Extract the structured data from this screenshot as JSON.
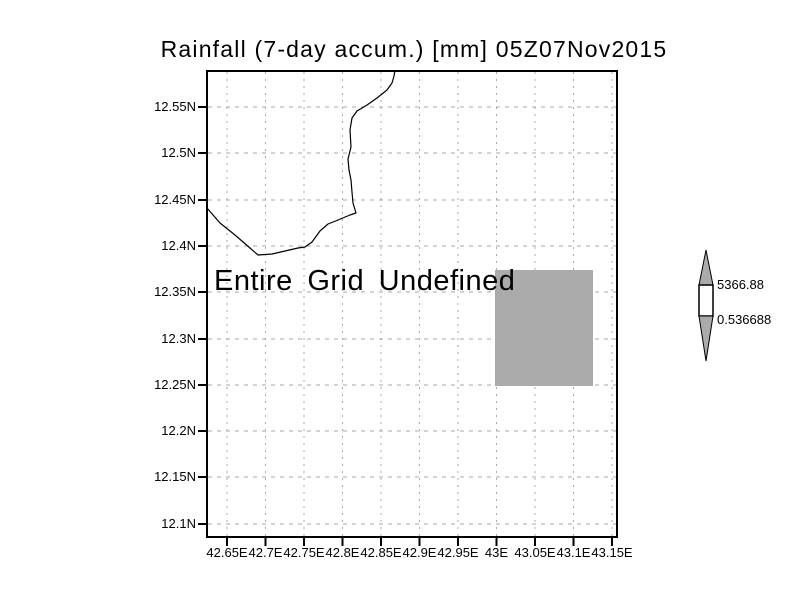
{
  "title": "Rainfall (7-day accum.) [mm] 05Z07Nov2015",
  "message": "Entire Grid Undefined",
  "axes": {
    "x": {
      "labels": [
        "42.65E",
        "42.7E",
        "42.75E",
        "42.8E",
        "42.85E",
        "42.9E",
        "42.95E",
        "43E",
        "43.05E",
        "43.1E",
        "43.15E"
      ]
    },
    "y": {
      "labels": [
        "12.55N",
        "12.5N",
        "12.45N",
        "12.4N",
        "12.35N",
        "12.3N",
        "12.25N",
        "12.2N",
        "12.15N",
        "12.1N"
      ]
    }
  },
  "colorbar": {
    "max": "5366.88",
    "min": "0.536688"
  },
  "colors": {
    "background": "#ffffff",
    "line": "#000000",
    "grid": "#a8a8a8",
    "shade": "#ababab"
  },
  "chart_data": {
    "type": "heatmap",
    "title": "Rainfall (7-day accum.) [mm] 05Z07Nov2015",
    "variable": "Rainfall (7-day accum.)",
    "units": "mm",
    "valid_time": "05Z07Nov2015",
    "xlabel": "",
    "ylabel": "",
    "x_tick_labels": [
      "42.65E",
      "42.7E",
      "42.75E",
      "42.8E",
      "42.85E",
      "42.9E",
      "42.95E",
      "43E",
      "43.05E",
      "43.1E",
      "43.15E"
    ],
    "y_tick_labels": [
      "12.55N",
      "12.5N",
      "12.45N",
      "12.4N",
      "12.35N",
      "12.3N",
      "12.25N",
      "12.2N",
      "12.15N",
      "12.1N"
    ],
    "xlim_deg_east": [
      42.62,
      43.16
    ],
    "ylim_deg_north": [
      12.085,
      12.59
    ],
    "grid": true,
    "status_annotation": "Entire Grid Undefined",
    "defined_cells": [
      {
        "lon_east_range": [
          43.0,
          43.125
        ],
        "lat_north_range": [
          12.25,
          12.375
        ],
        "fill": "#ababab"
      }
    ],
    "colorbar": {
      "orientation": "vertical",
      "position": "right",
      "tick_labels": [
        "5366.88",
        "0.536688"
      ],
      "max": 5366.88,
      "min": 0.536688
    },
    "overlays": [
      "coastline"
    ]
  }
}
